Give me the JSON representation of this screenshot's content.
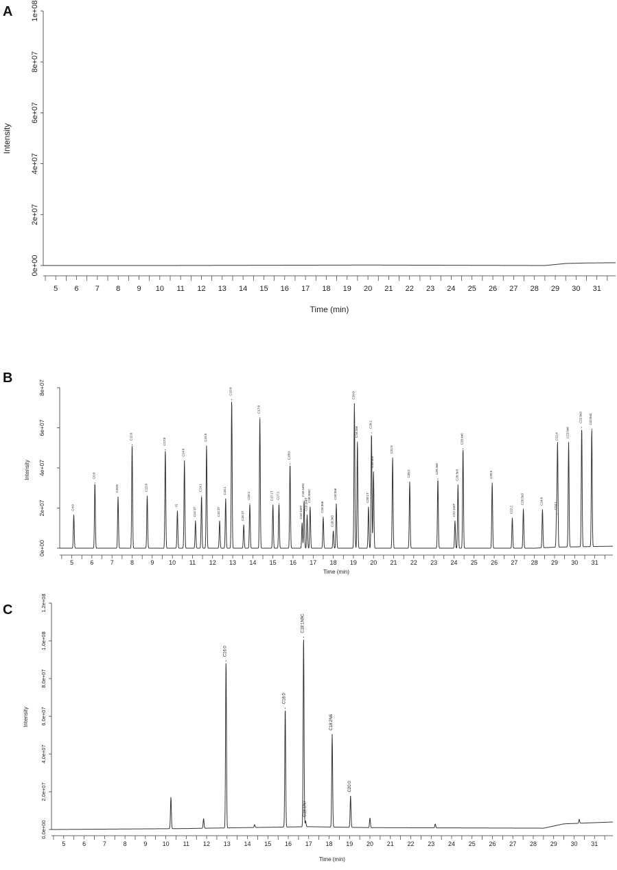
{
  "chart_data": [
    {
      "type": "line",
      "panel": "A",
      "xlabel": "Time (min)",
      "ylabel": "Intensity",
      "xlim": [
        4.4,
        31.9
      ],
      "ylim": [
        0,
        100000000
      ],
      "x_ticks": [
        5,
        6,
        7,
        8,
        9,
        10,
        11,
        12,
        13,
        14,
        15,
        16,
        17,
        18,
        19,
        20,
        21,
        22,
        23,
        24,
        25,
        26,
        27,
        28,
        29,
        30,
        31
      ],
      "y_ticks": [
        {
          "value": 0,
          "label": "0e+00"
        },
        {
          "value": 20000000,
          "label": "2e+07"
        },
        {
          "value": 40000000,
          "label": "4e+07"
        },
        {
          "value": 60000000,
          "label": "6e+07"
        },
        {
          "value": 80000000,
          "label": "8e+07"
        },
        {
          "value": 100000000,
          "label": "1e+08"
        }
      ],
      "baseline": [
        [
          4.4,
          0
        ],
        [
          10,
          0
        ],
        [
          20,
          200000
        ],
        [
          28.5,
          0
        ],
        [
          29.5,
          800000
        ],
        [
          30.5,
          1000000
        ],
        [
          31.9,
          1100000
        ]
      ],
      "peaks": []
    },
    {
      "type": "line",
      "panel": "B",
      "xlabel": "Time (min)",
      "ylabel": "Intensity",
      "xlim": [
        4.4,
        31.9
      ],
      "ylim": [
        0,
        80000000
      ],
      "x_ticks": [
        5,
        6,
        7,
        8,
        9,
        10,
        11,
        12,
        13,
        14,
        15,
        16,
        17,
        18,
        19,
        20,
        21,
        22,
        23,
        24,
        25,
        26,
        27,
        28,
        29,
        30,
        31
      ],
      "y_ticks": [
        {
          "value": 0,
          "label": "0e+00"
        },
        {
          "value": 20000000,
          "label": "2e+07"
        },
        {
          "value": 40000000,
          "label": "4e+07"
        },
        {
          "value": 60000000,
          "label": "6e+07"
        },
        {
          "value": 80000000,
          "label": "8e+07"
        }
      ],
      "baseline": [
        [
          4.4,
          0
        ],
        [
          28,
          0
        ],
        [
          29,
          500000
        ],
        [
          31.9,
          1000000
        ]
      ],
      "peaks": [
        {
          "t": 5.1,
          "v": 16500000,
          "label": "C4:0"
        },
        {
          "t": 6.15,
          "v": 32500000,
          "label": "C6:0"
        },
        {
          "t": 7.3,
          "v": 25500000,
          "label": "C10:0"
        },
        {
          "t": 8.0,
          "v": 51500000,
          "label": "C11:0"
        },
        {
          "t": 8.75,
          "v": 26000000,
          "label": "C12:0"
        },
        {
          "t": 9.65,
          "v": 49000000,
          "label": "C13:0"
        },
        {
          "t": 10.25,
          "v": 18500000,
          "label": "IS"
        },
        {
          "t": 10.6,
          "v": 43500000,
          "label": "C14:0"
        },
        {
          "t": 11.15,
          "v": 13500000,
          "label": "C14:1T"
        },
        {
          "t": 11.45,
          "v": 26000000,
          "label": "C14:1"
        },
        {
          "t": 11.7,
          "v": 51000000,
          "label": "C15:0"
        },
        {
          "t": 12.35,
          "v": 13500000,
          "label": "C15:1T"
        },
        {
          "t": 12.65,
          "v": 24500000,
          "label": "C15:1"
        },
        {
          "t": 12.95,
          "v": 74000000,
          "label": "C16:0"
        },
        {
          "t": 13.55,
          "v": 11500000,
          "label": "C16:1T"
        },
        {
          "t": 13.85,
          "v": 22000000,
          "label": "C16:1"
        },
        {
          "t": 14.35,
          "v": 65000000,
          "label": "C17:0"
        },
        {
          "t": 15.0,
          "v": 21500000,
          "label": "C17:1T"
        },
        {
          "t": 15.3,
          "v": 22000000,
          "label": "C17:1"
        },
        {
          "t": 15.85,
          "v": 42000000,
          "label": "C18:0"
        },
        {
          "t": 16.45,
          "v": 12500000,
          "label": "C18:1n9T"
        },
        {
          "t": 16.55,
          "v": 23500000,
          "label": "C18:1n9C"
        },
        {
          "t": 16.7,
          "v": 16500000,
          "label": "C18:2n6T"
        },
        {
          "t": 16.85,
          "v": 20500000,
          "label": "C18:2n6C"
        },
        {
          "t": 17.5,
          "v": 15500000,
          "label": "C18:3n6"
        },
        {
          "t": 18.0,
          "v": 8500000,
          "label": "C18:3n3"
        },
        {
          "t": 18.15,
          "v": 22000000,
          "label": "C18:3n6"
        },
        {
          "t": 19.05,
          "v": 72000000,
          "label": "C20:0"
        },
        {
          "t": 19.2,
          "v": 53000000,
          "label": "C18:2n6"
        },
        {
          "t": 19.75,
          "v": 20500000,
          "label": "C20:1T"
        },
        {
          "t": 19.9,
          "v": 57500000,
          "label": "C20:1"
        },
        {
          "t": 20.0,
          "v": 38000000,
          "label": "C18:3n3"
        },
        {
          "t": 20.95,
          "v": 45000000,
          "label": "C21:0"
        },
        {
          "t": 21.8,
          "v": 33000000,
          "label": "C20:2"
        },
        {
          "t": 23.2,
          "v": 34500000,
          "label": "C20:3n6"
        },
        {
          "t": 24.05,
          "v": 13500000,
          "label": "C22:1n9T"
        },
        {
          "t": 24.2,
          "v": 31500000,
          "label": "C20:3n3"
        },
        {
          "t": 24.45,
          "v": 49500000,
          "label": "C20:4n6"
        },
        {
          "t": 25.9,
          "v": 32500000,
          "label": "C20:5"
        },
        {
          "t": 26.9,
          "v": 15000000,
          "label": "C22:2"
        },
        {
          "t": 27.45,
          "v": 19500000,
          "label": "C20:5n3"
        },
        {
          "t": 28.4,
          "v": 19000000,
          "label": "C24:0"
        },
        {
          "t": 29.1,
          "v": 16500000,
          "label": "C24:1"
        },
        {
          "t": 29.15,
          "v": 51000000,
          "label": "C22:4"
        },
        {
          "t": 29.7,
          "v": 52000000,
          "label": "C22:5n6"
        },
        {
          "t": 30.35,
          "v": 59500000,
          "label": "C22:5n3"
        },
        {
          "t": 30.85,
          "v": 58500000,
          "label": "C22:6n3"
        }
      ]
    },
    {
      "type": "line",
      "panel": "C",
      "xlabel": "Time (min)",
      "ylabel": "Intensity",
      "xlim": [
        4.4,
        31.9
      ],
      "ylim": [
        0,
        120000000
      ],
      "x_ticks": [
        5,
        6,
        7,
        8,
        9,
        10,
        11,
        12,
        13,
        14,
        15,
        16,
        17,
        18,
        19,
        20,
        21,
        22,
        23,
        24,
        25,
        26,
        27,
        28,
        29,
        30,
        31
      ],
      "y_ticks": [
        {
          "value": 0,
          "label": "0.0e+00"
        },
        {
          "value": 20000000,
          "label": "2.0e+07"
        },
        {
          "value": 40000000,
          "label": "4.0e+07"
        },
        {
          "value": 60000000,
          "label": "6.0e+07"
        },
        {
          "value": 80000000,
          "label": "8.0e+07"
        },
        {
          "value": 100000000,
          "label": "1.0e+08"
        },
        {
          "value": 120000000,
          "label": "1.2e+08"
        }
      ],
      "baseline": [
        [
          4.4,
          0
        ],
        [
          11,
          500000
        ],
        [
          12,
          700000
        ],
        [
          17,
          1500000
        ],
        [
          20,
          1000000
        ],
        [
          28.5,
          700000
        ],
        [
          29.5,
          3000000
        ],
        [
          31.9,
          4000000
        ]
      ],
      "peaks": [
        {
          "t": 10.25,
          "v": 16500000,
          "label": ""
        },
        {
          "t": 11.85,
          "v": 5000000,
          "label": ""
        },
        {
          "t": 12.95,
          "v": 88500000,
          "label": "C16:0"
        },
        {
          "t": 14.35,
          "v": 1500000,
          "label": ""
        },
        {
          "t": 15.85,
          "v": 63000000,
          "label": "C18:0"
        },
        {
          "t": 16.75,
          "v": 100500000,
          "label": "C18:1N9C"
        },
        {
          "t": 16.85,
          "v": 3000000,
          "label": "C18:1N7"
        },
        {
          "t": 18.15,
          "v": 49000000,
          "label": "C18:2N6"
        },
        {
          "t": 19.05,
          "v": 16500000,
          "label": "C20:0"
        },
        {
          "t": 20.0,
          "v": 5000000,
          "label": ""
        },
        {
          "t": 23.2,
          "v": 2000000,
          "label": ""
        },
        {
          "t": 30.25,
          "v": 2000000,
          "label": ""
        }
      ]
    }
  ],
  "panels": [
    {
      "letter": "A"
    },
    {
      "letter": "B"
    },
    {
      "letter": "C"
    }
  ]
}
